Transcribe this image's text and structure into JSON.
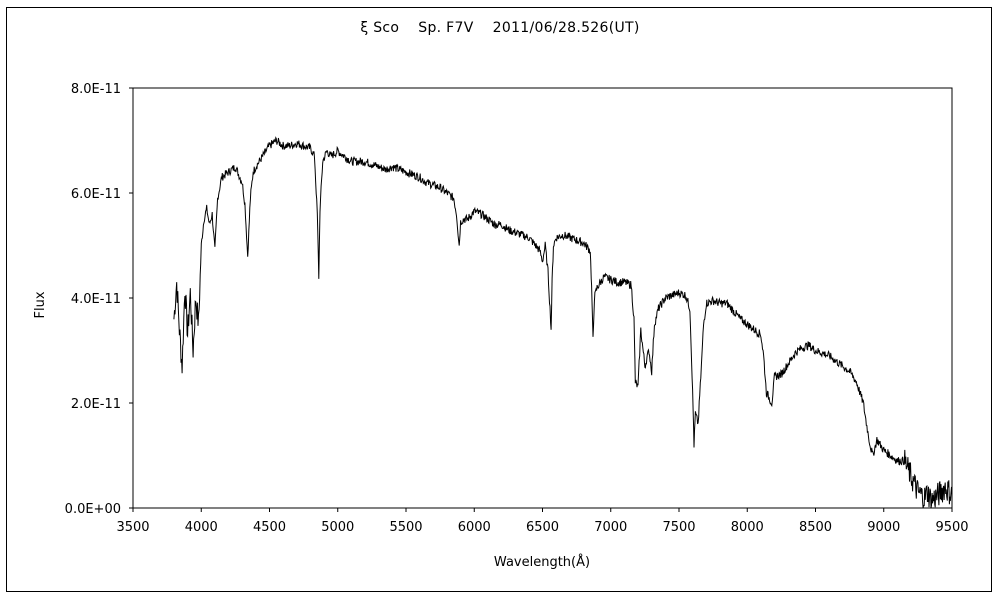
{
  "chart_data": {
    "type": "line",
    "title": "ξ Sco　 Sp. F7V　 2011/06/28.526(UT)",
    "xlabel": "Wavelength(Å)",
    "ylabel": "Flux",
    "xlim": [
      3500,
      9500
    ],
    "ylim": [
      0,
      8e-11
    ],
    "xticks": [
      3500,
      4000,
      4500,
      5000,
      5500,
      6000,
      6500,
      7000,
      7500,
      8000,
      8500,
      9000,
      9500
    ],
    "xtick_labels": [
      "3500",
      "4000",
      "4500",
      "5000",
      "5500",
      "6000",
      "6500",
      "7000",
      "7500",
      "8000",
      "8500",
      "9000",
      "9500"
    ],
    "yticks": [
      0,
      2e-11,
      4e-11,
      6e-11,
      8e-11
    ],
    "ytick_labels": [
      "0.0E+00",
      "2.0E-11",
      "4.0E-11",
      "6.0E-11",
      "8.0E-11"
    ],
    "grid": false,
    "legend": "none",
    "line_color": "#000000",
    "series": [
      {
        "x": [
          3800,
          3820,
          3840,
          3860,
          3880,
          3900,
          3920,
          3940,
          3960,
          3980,
          4000,
          4020,
          4040,
          4060,
          4080,
          4100,
          4120,
          4150,
          4200,
          4250,
          4300,
          4320,
          4340,
          4360,
          4380,
          4400,
          4450,
          4500,
          4550,
          4600,
          4650,
          4700,
          4750,
          4800,
          4830,
          4850,
          4861,
          4870,
          4890,
          4920,
          4950,
          5000,
          5050,
          5100,
          5150,
          5200,
          5250,
          5300,
          5350,
          5400,
          5450,
          5500,
          5550,
          5600,
          5650,
          5700,
          5750,
          5800,
          5850,
          5870,
          5890,
          5900,
          5920,
          5950,
          6000,
          6050,
          6100,
          6150,
          6200,
          6250,
          6300,
          6350,
          6400,
          6450,
          6480,
          6500,
          6520,
          6540,
          6555,
          6563,
          6570,
          6580,
          6600,
          6650,
          6700,
          6750,
          6800,
          6850,
          6860,
          6870,
          6880,
          6900,
          6950,
          7000,
          7050,
          7100,
          7150,
          7170,
          7180,
          7200,
          7220,
          7250,
          7280,
          7300,
          7320,
          7350,
          7400,
          7450,
          7500,
          7550,
          7580,
          7600,
          7610,
          7620,
          7640,
          7660,
          7680,
          7700,
          7750,
          7800,
          7850,
          7900,
          7950,
          8000,
          8050,
          8100,
          8120,
          8140,
          8160,
          8180,
          8200,
          8250,
          8300,
          8350,
          8400,
          8450,
          8500,
          8550,
          8600,
          8650,
          8700,
          8750,
          8800,
          8850,
          8880,
          8900,
          8920,
          8950,
          9000,
          9050,
          9100,
          9150,
          9200,
          9250,
          9300,
          9320,
          9350,
          9400,
          9450,
          9500
        ],
        "y": [
          3.6e-11,
          4.3e-11,
          3.4e-11,
          2.7e-11,
          4.2e-11,
          3.3e-11,
          4.1e-11,
          3e-11,
          4e-11,
          3.5e-11,
          5e-11,
          5.5e-11,
          5.7e-11,
          5.4e-11,
          5.6e-11,
          4.9e-11,
          5.9e-11,
          6.3e-11,
          6.4e-11,
          6.5e-11,
          6.2e-11,
          5.8e-11,
          4.8e-11,
          5.9e-11,
          6.4e-11,
          6.5e-11,
          6.7e-11,
          6.9e-11,
          7e-11,
          6.9e-11,
          6.9e-11,
          6.95e-11,
          6.9e-11,
          6.85e-11,
          6.7e-11,
          5.6e-11,
          4.4e-11,
          5.7e-11,
          6.6e-11,
          6.8e-11,
          6.7e-11,
          6.8e-11,
          6.7e-11,
          6.6e-11,
          6.6e-11,
          6.6e-11,
          6.55e-11,
          6.5e-11,
          6.45e-11,
          6.5e-11,
          6.45e-11,
          6.4e-11,
          6.35e-11,
          6.3e-11,
          6.2e-11,
          6.15e-11,
          6.1e-11,
          6e-11,
          5.9e-11,
          5.6e-11,
          5e-11,
          5.45e-11,
          5.5e-11,
          5.5e-11,
          5.65e-11,
          5.6e-11,
          5.5e-11,
          5.4e-11,
          5.4e-11,
          5.3e-11,
          5.25e-11,
          5.2e-11,
          5.15e-11,
          5e-11,
          4.9e-11,
          4.7e-11,
          5e-11,
          4.5e-11,
          3.8e-11,
          3.4e-11,
          4.3e-11,
          5e-11,
          5.15e-11,
          5.2e-11,
          5.15e-11,
          5.1e-11,
          5.05e-11,
          4.9e-11,
          4.2e-11,
          3.2e-11,
          4e-11,
          4.2e-11,
          4.4e-11,
          4.35e-11,
          4.3e-11,
          4.3e-11,
          4.25e-11,
          3.6e-11,
          2.4e-11,
          2.3e-11,
          3.4e-11,
          2.7e-11,
          3e-11,
          2.6e-11,
          3.5e-11,
          3.8e-11,
          4e-11,
          4.05e-11,
          4.1e-11,
          4.05e-11,
          3.8e-11,
          2.2e-11,
          1.2e-11,
          1.8e-11,
          1.6e-11,
          2.5e-11,
          3.5e-11,
          3.9e-11,
          3.95e-11,
          3.9e-11,
          3.9e-11,
          3.75e-11,
          3.6e-11,
          3.5e-11,
          3.4e-11,
          3.3e-11,
          2.9e-11,
          2.2e-11,
          2.1e-11,
          2e-11,
          2.5e-11,
          2.55e-11,
          2.75e-11,
          2.95e-11,
          3.05e-11,
          3.1e-11,
          3e-11,
          2.95e-11,
          2.9e-11,
          2.8e-11,
          2.7e-11,
          2.6e-11,
          2.4e-11,
          2e-11,
          1.5e-11,
          1.2e-11,
          1e-11,
          1.3e-11,
          1.1e-11,
          1e-11,
          9e-12,
          9e-12,
          6e-12,
          3e-12,
          2e-12,
          3e-12,
          1.5e-12,
          2.5e-12,
          4e-12,
          2.5e-12
        ]
      }
    ]
  }
}
